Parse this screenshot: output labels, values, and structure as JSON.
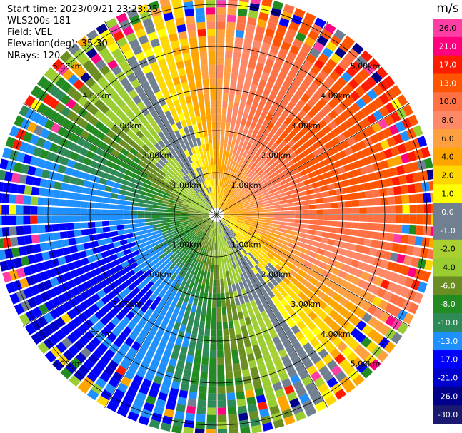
{
  "info": {
    "start_time": "Start time: 2023/09/21 23:23:25",
    "instrument": "WLS200s-181",
    "field": "Field: VEL",
    "elevation": "Elevation(deg): 35.30",
    "nrays": "NRays: 120"
  },
  "chart_data": {
    "type": "heatmap",
    "projection": "polar-ppi",
    "field": "VEL",
    "units": "m/s",
    "nrays": 120,
    "max_range_km": 5.3,
    "range_rings_km": [
      1,
      2,
      3,
      4,
      5
    ],
    "ring_labels": [
      "1.00km",
      "2.00km",
      "3.00km",
      "4.00km",
      "5.00km"
    ],
    "spokes_deg": [
      0,
      30,
      60,
      90,
      120,
      150,
      180,
      210,
      240,
      270,
      300,
      330
    ],
    "pattern": {
      "description_free": true,
      "peak_positive_azimuth_deg": 60,
      "peak_negative_azimuth_deg": 240,
      "max_abs_velocity": 14,
      "noise_start_km": 4.3
    },
    "colorbar": {
      "unit_label": "m/s",
      "ticks": [
        "26.0",
        "21.0",
        "17.0",
        "13.0",
        "10.0",
        "8.0",
        "6.0",
        "4.0",
        "2.0",
        "1.0",
        "0.0",
        "-1.0",
        "-2.0",
        "-4.0",
        "-6.0",
        "-8.0",
        "-10.0",
        "-13.0",
        "-17.0",
        "-21.0",
        "-26.0",
        "-30.0"
      ],
      "bins": [
        {
          "min": 26,
          "max": 30,
          "color": "#ff3ea5"
        },
        {
          "min": 21,
          "max": 26,
          "color": "#ff007f"
        },
        {
          "min": 17,
          "max": 21,
          "color": "#ff1a00"
        },
        {
          "min": 13,
          "max": 17,
          "color": "#ff5500"
        },
        {
          "min": 10,
          "max": 13,
          "color": "#ff7043"
        },
        {
          "min": 8,
          "max": 10,
          "color": "#ff8866"
        },
        {
          "min": 6,
          "max": 8,
          "color": "#ffa040"
        },
        {
          "min": 4,
          "max": 6,
          "color": "#ffa500"
        },
        {
          "min": 2,
          "max": 4,
          "color": "#ffd700"
        },
        {
          "min": 1,
          "max": 2,
          "color": "#ffff00"
        },
        {
          "min": 0,
          "max": 1,
          "color": "#708090"
        },
        {
          "min": -1,
          "max": 0,
          "color": "#708090"
        },
        {
          "min": -2,
          "max": -1,
          "color": "#a9d030"
        },
        {
          "min": -4,
          "max": -2,
          "color": "#9acd32"
        },
        {
          "min": -6,
          "max": -4,
          "color": "#6b8e23"
        },
        {
          "min": -8,
          "max": -6,
          "color": "#228b22"
        },
        {
          "min": -10,
          "max": -8,
          "color": "#2e8b57"
        },
        {
          "min": -13,
          "max": -10,
          "color": "#1e90ff"
        },
        {
          "min": -17,
          "max": -13,
          "color": "#0000ff"
        },
        {
          "min": -21,
          "max": -17,
          "color": "#0000cd"
        },
        {
          "min": -26,
          "max": -21,
          "color": "#00008b"
        },
        {
          "min": -30,
          "max": -26,
          "color": "#191970"
        }
      ]
    }
  }
}
